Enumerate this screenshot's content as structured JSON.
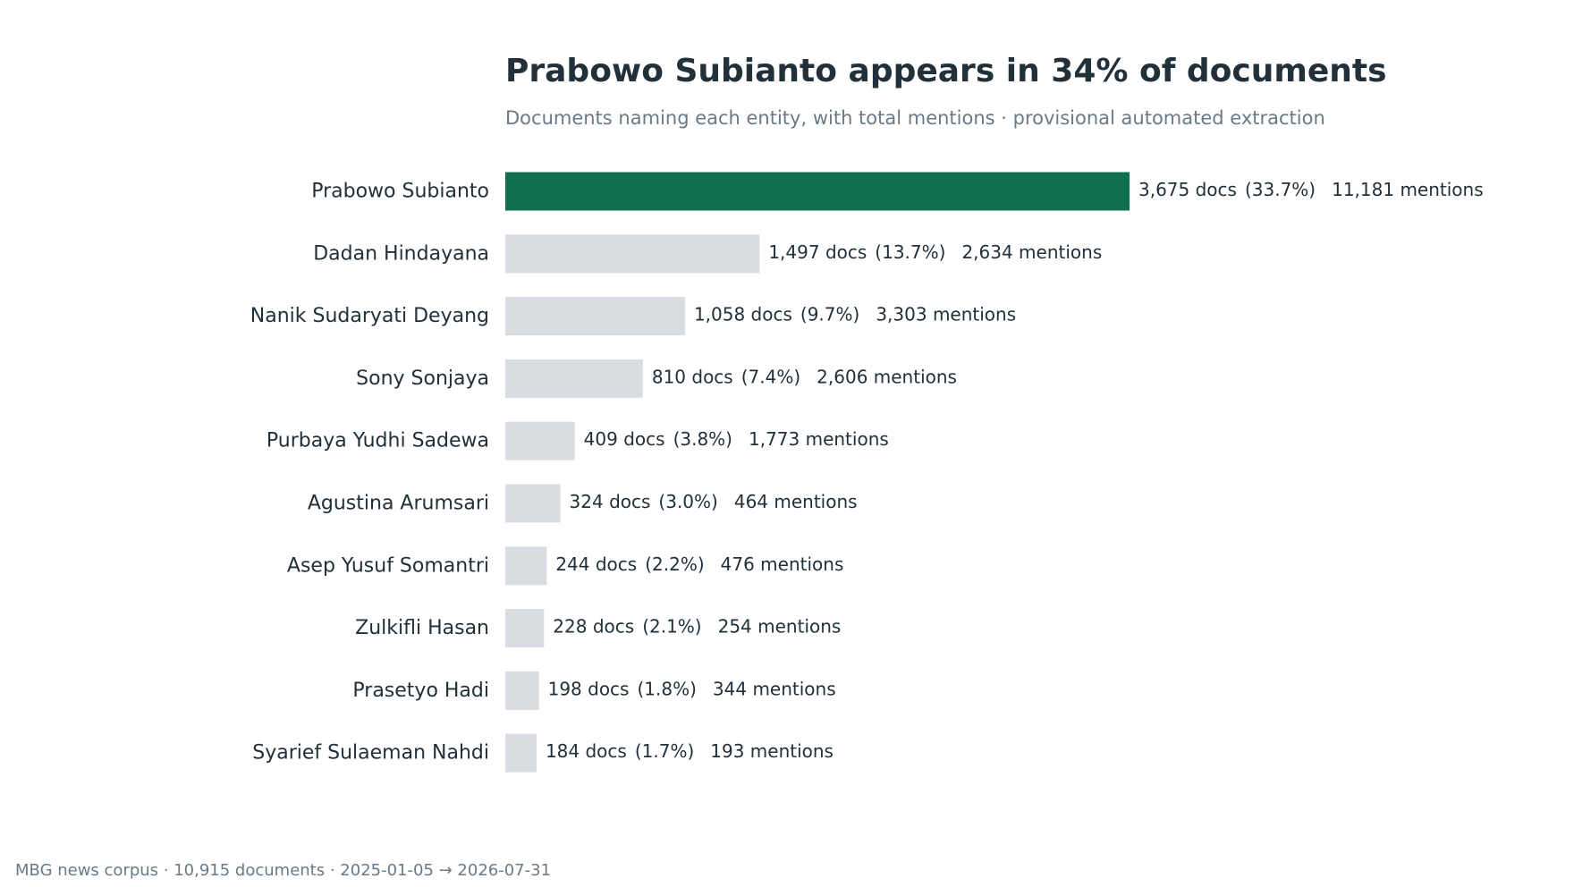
{
  "chart_data": {
    "type": "bar",
    "orientation": "horizontal",
    "title": "Prabowo Subianto appears in 34% of documents",
    "subtitle": "Documents naming each entity, with total mentions · provisional automated extraction",
    "categories": [
      "Prabowo Subianto",
      "Dadan Hindayana",
      "Nanik Sudaryati Deyang",
      "Sony Sonjaya",
      "Purbaya Yudhi Sadewa",
      "Agustina Arumsari",
      "Asep Yusuf Somantri",
      "Zulkifli Hasan",
      "Prasetyo Hadi",
      "Syarief Sulaeman Nahdi"
    ],
    "values": [
      3675,
      1497,
      1058,
      810,
      409,
      324,
      244,
      228,
      198,
      184
    ],
    "docs_labels": [
      "3,675 docs",
      "1,497 docs",
      "1,058 docs",
      "810 docs",
      "409 docs",
      "324 docs",
      "244 docs",
      "228 docs",
      "198 docs",
      "184 docs"
    ],
    "share_labels": [
      "(33.7%)",
      "(13.7%)",
      "(9.7%)",
      "(7.4%)",
      "(3.8%)",
      "(3.0%)",
      "(2.2%)",
      "(2.1%)",
      "(1.8%)",
      "(1.7%)"
    ],
    "mentions_labels": [
      "11,181 mentions",
      "2,634 mentions",
      "3,303 mentions",
      "2,606 mentions",
      "1,773 mentions",
      "464 mentions",
      "476 mentions",
      "254 mentions",
      "344 mentions",
      "193 mentions"
    ],
    "highlight_index": 0,
    "xlabel": "",
    "ylabel": "",
    "xlim": [
      0,
      3675
    ],
    "grid": false,
    "legend": "none",
    "colors": {
      "highlight": "#0e7050",
      "default": "#d9dde1",
      "category_label": "#22303a",
      "value_label": "#22303a"
    }
  },
  "footer": {
    "note": "MBG news corpus · 10,915 documents · 2025-01-05 → 2026-07-31"
  }
}
